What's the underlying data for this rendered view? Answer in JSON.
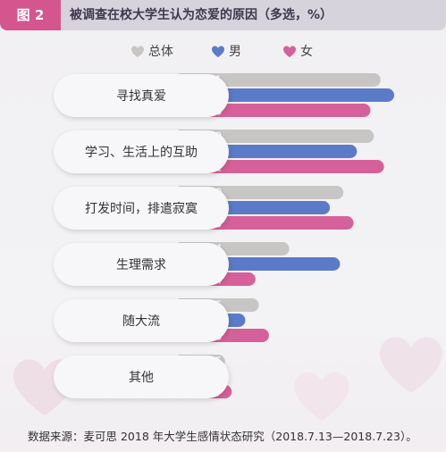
{
  "figure": {
    "tag": "图 2",
    "title": "被调查在校大学生认为恋爱的原因（多选，%）"
  },
  "legend": [
    {
      "label": "总体",
      "color": "#c7c6c4",
      "icon": "heart-icon"
    },
    {
      "label": "男",
      "color": "#5b7bc9",
      "icon": "heart-icon"
    },
    {
      "label": "女",
      "color": "#d6619a",
      "icon": "heart-icon"
    }
  ],
  "chart_data": {
    "type": "bar",
    "orientation": "horizontal",
    "categories": [
      "寻找真爱",
      "学习、生活上的互助",
      "打发时间，排遣寂寞",
      "生理需求",
      "随大流",
      "其他"
    ],
    "series": [
      {
        "name": "总体",
        "values": [
          61,
          59,
          50,
          34,
          25,
          15
        ],
        "color": "#c7c6c4"
      },
      {
        "name": "男",
        "values": [
          65,
          54,
          46,
          49,
          21,
          11
        ],
        "color": "#5b7bc9"
      },
      {
        "name": "女",
        "values": [
          58,
          62,
          53,
          24,
          28,
          17
        ],
        "color": "#d6619a"
      }
    ],
    "xlim": [
      0,
      65
    ],
    "grid": false,
    "legend_position": "top"
  },
  "footnote": "数据来源：麦可思 2018 年大学生感情状态研究（2018.7.13—2018.7.23）。"
}
